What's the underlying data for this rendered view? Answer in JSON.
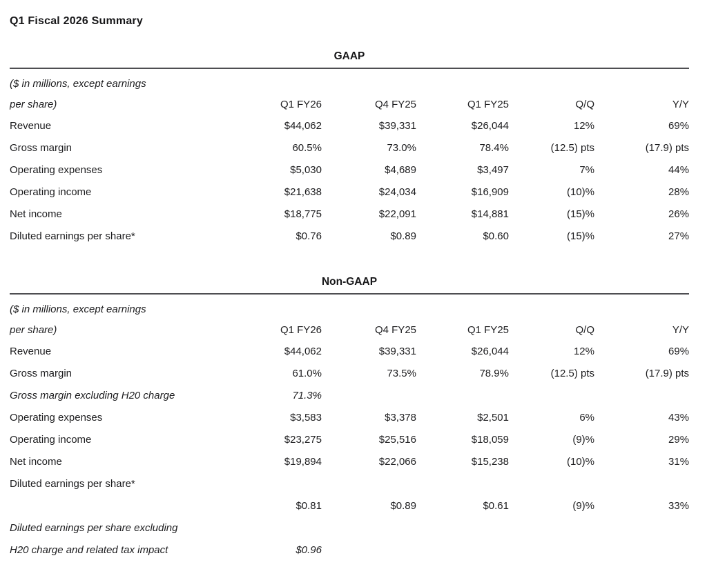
{
  "document": {
    "title": "Q1 Fiscal 2026 Summary"
  },
  "table_header": {
    "unit_note_line1": "($ in millions, except earnings",
    "unit_note_line2": "per share)",
    "columns": [
      "Q1 FY26",
      "Q4 FY25",
      "Q1 FY25",
      "Q/Q",
      "Y/Y"
    ]
  },
  "tables": [
    {
      "name": "GAAP",
      "rows": [
        {
          "label": "Revenue",
          "italic": false,
          "values": [
            "$44,062",
            "$39,331",
            "$26,044",
            "12%",
            "69%"
          ]
        },
        {
          "label": "Gross margin",
          "italic": false,
          "values": [
            "60.5%",
            "73.0%",
            "78.4%",
            "(12.5) pts",
            "(17.9) pts"
          ]
        },
        {
          "label": "Operating expenses",
          "italic": false,
          "values": [
            "$5,030",
            "$4,689",
            "$3,497",
            "7%",
            "44%"
          ]
        },
        {
          "label": "Operating income",
          "italic": false,
          "values": [
            "$21,638",
            "$24,034",
            "$16,909",
            "(10)%",
            "28%"
          ]
        },
        {
          "label": "Net income",
          "italic": false,
          "values": [
            "$18,775",
            "$22,091",
            "$14,881",
            "(15)%",
            "26%"
          ]
        },
        {
          "label": "Diluted earnings per share*",
          "italic": false,
          "values": [
            "$0.76",
            "$0.89",
            "$0.60",
            "(15)%",
            "27%"
          ]
        }
      ]
    },
    {
      "name": "Non-GAAP",
      "rows": [
        {
          "label": "Revenue",
          "italic": false,
          "values": [
            "$44,062",
            "$39,331",
            "$26,044",
            "12%",
            "69%"
          ]
        },
        {
          "label": "Gross margin",
          "italic": false,
          "values": [
            "61.0%",
            "73.5%",
            "78.9%",
            "(12.5) pts",
            "(17.9) pts"
          ]
        },
        {
          "label": "Gross margin excluding H20 charge",
          "italic": true,
          "values": [
            "71.3%",
            "",
            "",
            "",
            ""
          ]
        },
        {
          "label": "Operating expenses",
          "italic": false,
          "values": [
            "$3,583",
            "$3,378",
            "$2,501",
            "6%",
            "43%"
          ]
        },
        {
          "label": "Operating income",
          "italic": false,
          "values": [
            "$23,275",
            "$25,516",
            "$18,059",
            "(9)%",
            "29%"
          ]
        },
        {
          "label": "Net income",
          "italic": false,
          "values": [
            "$19,894",
            "$22,066",
            "$15,238",
            "(10)%",
            "31%"
          ]
        },
        {
          "label": "Diluted earnings per share*",
          "italic": false,
          "values": [
            "",
            "",
            "",
            "",
            ""
          ]
        },
        {
          "label": "",
          "italic": false,
          "values": [
            "$0.81",
            "$0.89",
            "$0.61",
            "(9)%",
            "33%"
          ]
        },
        {
          "label": "Diluted earnings per share excluding",
          "italic": true,
          "values": [
            "",
            "",
            "",
            "",
            ""
          ]
        },
        {
          "label": "H20 charge and related tax impact",
          "italic": true,
          "values": [
            "$0.96",
            "",
            "",
            "",
            ""
          ]
        }
      ]
    }
  ],
  "colors": {
    "text": "#1d1d1f",
    "rule": "#4e4e52",
    "background": "#ffffff"
  }
}
